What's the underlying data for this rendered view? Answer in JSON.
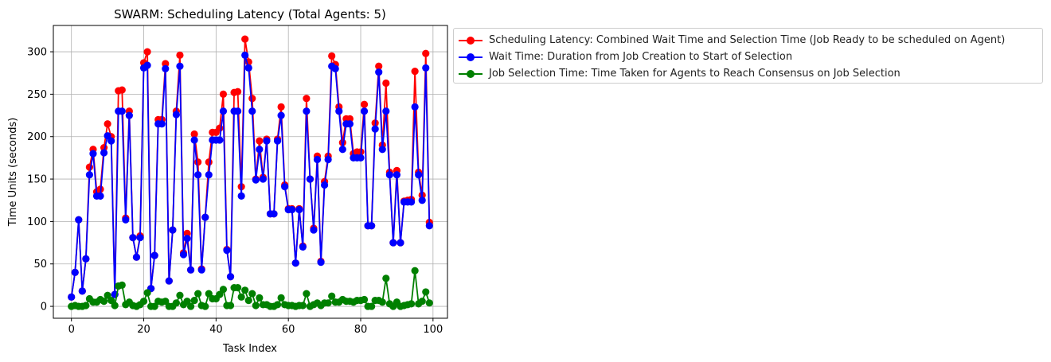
{
  "chart_data": {
    "type": "line",
    "title": "SWARM: Scheduling Latency (Total Agents: 5)",
    "xlabel": "Task Index",
    "ylabel": "Time Units (seconds)",
    "xlim": [
      -5,
      104
    ],
    "ylim": [
      -14,
      331
    ],
    "xticks": [
      0,
      20,
      40,
      60,
      80,
      100
    ],
    "yticks": [
      0,
      50,
      100,
      150,
      200,
      250,
      300
    ],
    "grid": true,
    "legend_position": "outside right, top",
    "x": [
      0,
      1,
      2,
      3,
      4,
      5,
      6,
      7,
      8,
      9,
      10,
      11,
      12,
      13,
      14,
      15,
      16,
      17,
      18,
      19,
      20,
      21,
      22,
      23,
      24,
      25,
      26,
      27,
      28,
      29,
      30,
      31,
      32,
      33,
      34,
      35,
      36,
      37,
      38,
      39,
      40,
      41,
      42,
      43,
      44,
      45,
      46,
      47,
      48,
      49,
      50,
      51,
      52,
      53,
      54,
      55,
      56,
      57,
      58,
      59,
      60,
      61,
      62,
      63,
      64,
      65,
      66,
      67,
      68,
      69,
      70,
      71,
      72,
      73,
      74,
      75,
      76,
      77,
      78,
      79,
      80,
      81,
      82,
      83,
      84,
      85,
      86,
      87,
      88,
      89,
      90,
      91,
      92,
      93,
      94,
      95,
      96,
      97,
      98,
      99
    ],
    "series": [
      {
        "name": "Scheduling Latency: Combined Wait Time and Selection Time (Job Ready to be scheduled on Agent)",
        "color": "#ff0000",
        "values": [
          11,
          40,
          102,
          18,
          56,
          164,
          185,
          135,
          138,
          187,
          215,
          200,
          14,
          254,
          255,
          104,
          230,
          81,
          58,
          83,
          287,
          300,
          21,
          60,
          220,
          220,
          286,
          30,
          90,
          230,
          296,
          63,
          86,
          43,
          203,
          170,
          44,
          105,
          170,
          205,
          205,
          210,
          250,
          67,
          35,
          252,
          253,
          141,
          315,
          288,
          245,
          150,
          195,
          152,
          197,
          109,
          109,
          197,
          235,
          143,
          115,
          115,
          51,
          115,
          71,
          245,
          150,
          92,
          177,
          53,
          147,
          177,
          295,
          285,
          235,
          193,
          221,
          221,
          180,
          182,
          182,
          238,
          95,
          95,
          216,
          283,
          190,
          263,
          158,
          75,
          160,
          75,
          124,
          125,
          126,
          277,
          158,
          131,
          298,
          99
        ]
      },
      {
        "name": "Wait Time: Duration from Job Creation to Start of Selection",
        "color": "#0000ff",
        "values": [
          11,
          40,
          102,
          18,
          56,
          155,
          180,
          130,
          130,
          181,
          201,
          195,
          14,
          230,
          230,
          102,
          225,
          81,
          58,
          81,
          281,
          284,
          21,
          60,
          215,
          215,
          280,
          30,
          90,
          226,
          283,
          61,
          80,
          43,
          196,
          155,
          43,
          105,
          155,
          196,
          196,
          196,
          230,
          66,
          35,
          230,
          230,
          130,
          296,
          281,
          230,
          149,
          185,
          150,
          195,
          109,
          109,
          195,
          225,
          141,
          114,
          114,
          51,
          114,
          70,
          230,
          150,
          90,
          173,
          52,
          143,
          173,
          283,
          280,
          230,
          185,
          215,
          215,
          175,
          175,
          175,
          230,
          95,
          95,
          209,
          276,
          185,
          230,
          155,
          75,
          155,
          75,
          123,
          123,
          123,
          235,
          155,
          125,
          281,
          95
        ]
      },
      {
        "name": "Job Selection Time: Time Taken for Agents to Reach Consensus on Job Selection",
        "color": "#008000",
        "values": [
          0,
          1,
          0,
          0,
          1,
          9,
          5,
          5,
          8,
          6,
          13,
          7,
          1,
          24,
          25,
          2,
          5,
          1,
          0,
          2,
          6,
          16,
          0,
          0,
          6,
          5,
          6,
          0,
          0,
          4,
          13,
          2,
          6,
          0,
          7,
          15,
          1,
          0,
          15,
          9,
          9,
          14,
          20,
          1,
          1,
          22,
          22,
          11,
          19,
          7,
          15,
          1,
          10,
          2,
          2,
          0,
          0,
          2,
          10,
          2,
          1,
          1,
          0,
          1,
          1,
          15,
          0,
          2,
          4,
          1,
          4,
          4,
          12,
          5,
          5,
          8,
          6,
          6,
          5,
          7,
          7,
          8,
          0,
          0,
          7,
          7,
          5,
          33,
          3,
          0,
          5,
          0,
          1,
          2,
          3,
          42,
          3,
          6,
          17,
          4
        ]
      }
    ]
  }
}
